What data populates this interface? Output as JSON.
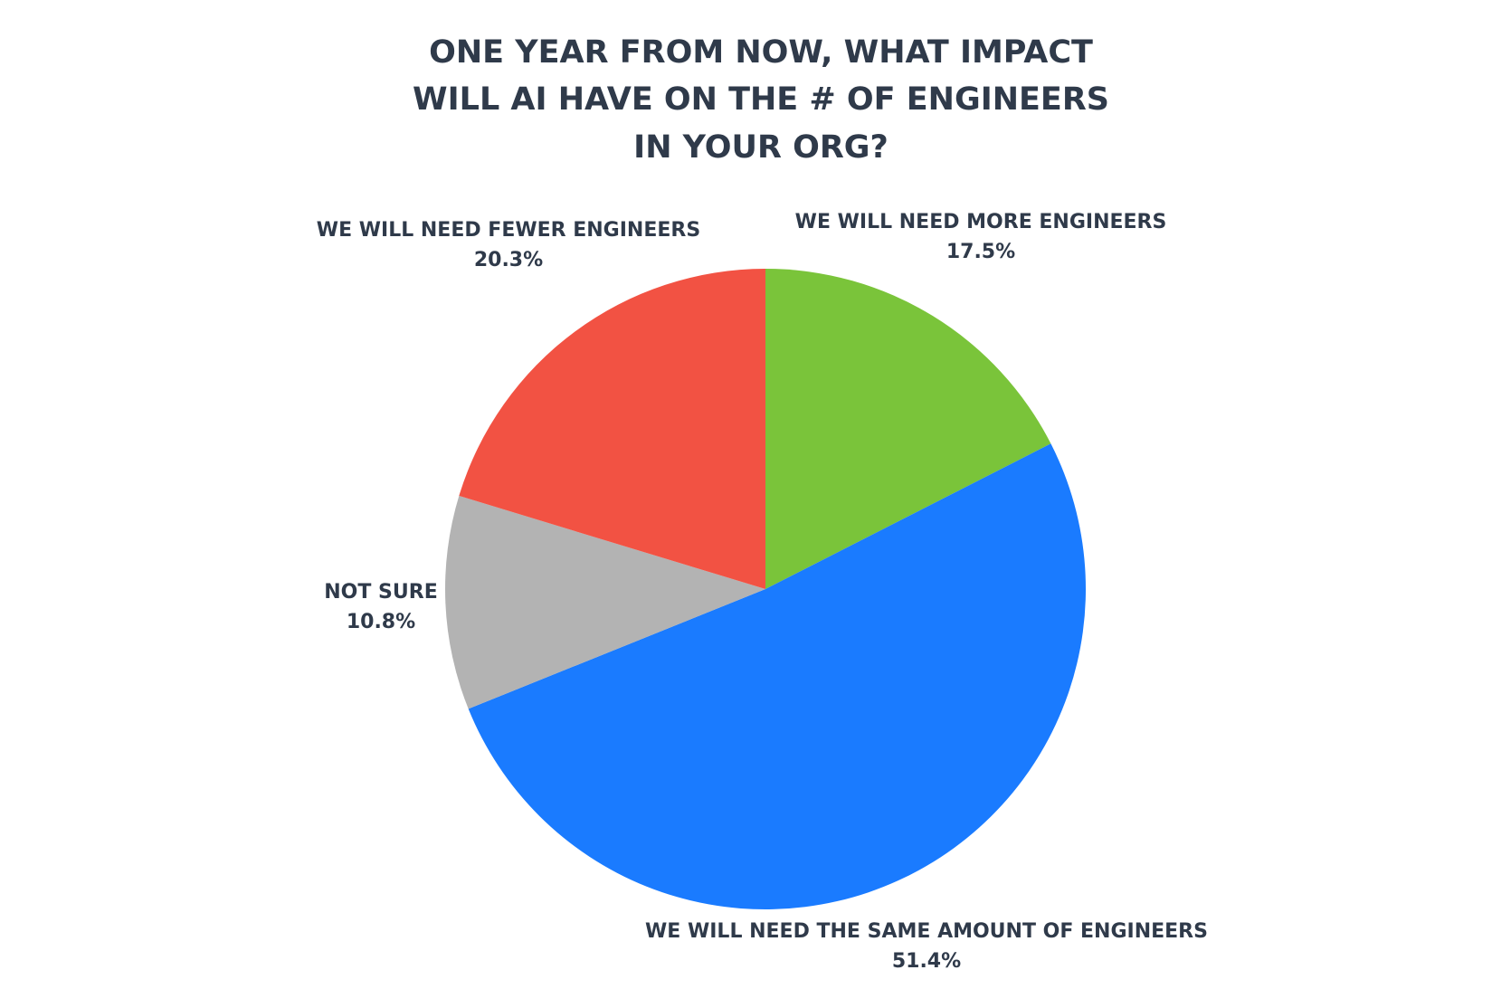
{
  "chart_data": {
    "type": "pie",
    "title": [
      "ONE YEAR FROM NOW, WHAT IMPACT",
      "WILL AI HAVE ON THE # OF ENGINEERS",
      "IN YOUR ORG?"
    ],
    "categories": [
      "WE WILL NEED MORE ENGINEERS",
      "WE WILL NEED THE SAME AMOUNT OF ENGINEERS",
      "NOT SURE",
      "WE WILL NEED FEWER ENGINEERS"
    ],
    "values": [
      17.5,
      51.4,
      10.8,
      20.3
    ],
    "value_labels": [
      "17.5%",
      "51.4%",
      "10.8%",
      "20.3%"
    ],
    "colors": [
      "#7ac43a",
      "#1a7bff",
      "#b3b3b3",
      "#f25243"
    ]
  }
}
